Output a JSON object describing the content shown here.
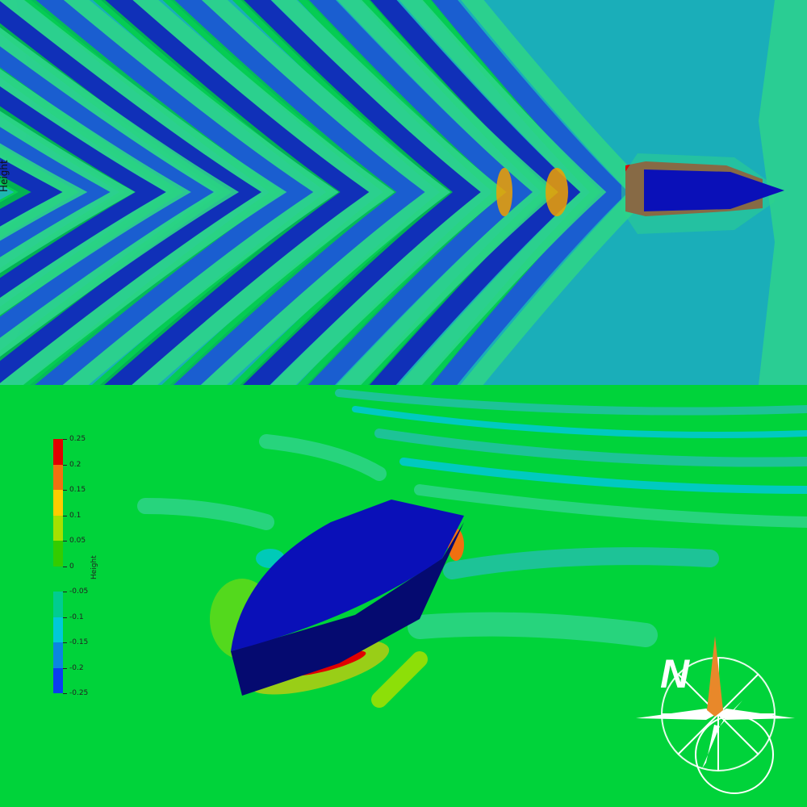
{
  "views": {
    "top": {
      "axis_label": "Height"
    },
    "perspective": {
      "axis_label": "Height"
    }
  },
  "colorbar": {
    "title": "Height",
    "ticks": [
      "0.25",
      "0.2",
      "0.15",
      "0.1",
      "0.05",
      "0",
      "-0.05",
      "-0.1",
      "-0.15",
      "-0.2",
      "-0.25"
    ],
    "bands": [
      "#e00000",
      "#f07010",
      "#ffcc00",
      "#a6e000",
      "#33cc00",
      "#00d33a",
      "#00cc90",
      "#00c8d8",
      "#0a86e0",
      "#0a3ef0"
    ]
  },
  "compass": {
    "north_letter": "N"
  },
  "palette": {
    "deep_trough": "#1030b8",
    "trough": "#1a5ed0",
    "water": "#1aaeb9",
    "rise": "#2ed48a",
    "crest": "#00d33a",
    "peak": "#f0a000",
    "max": "#e00000",
    "hull": "#0a10b8",
    "hull_side": "#050a70",
    "compass_needle": "#e8882a"
  }
}
